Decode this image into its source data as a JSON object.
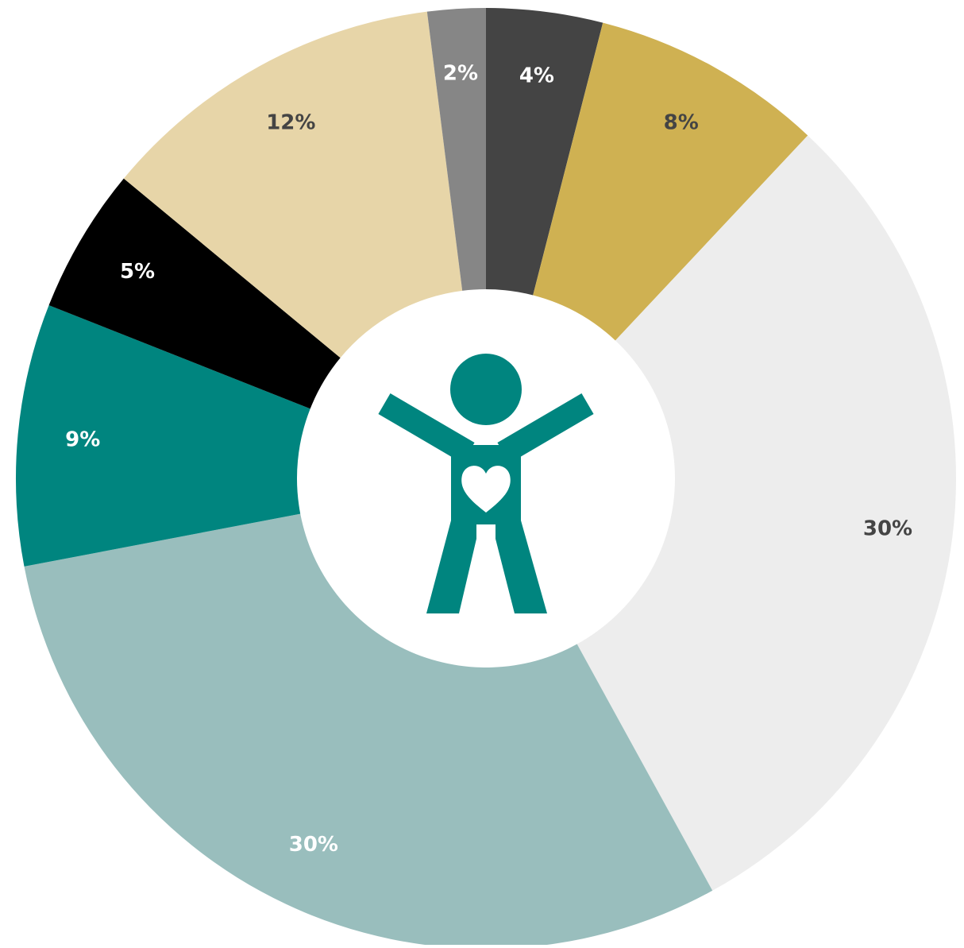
{
  "chart_data": {
    "type": "donut",
    "values": [
      4,
      8,
      30,
      30,
      9,
      5,
      12,
      2
    ],
    "value_labels": [
      "4%",
      "8%",
      "30%",
      "30%",
      "9%",
      "5%",
      "12%",
      "2%"
    ],
    "colors": [
      "#444444",
      "#cfb152",
      "#ededed",
      "#99bebd",
      "#00857f",
      "#000000",
      "#e7d5a8",
      "#868686"
    ],
    "label_colors": [
      "#ffffff",
      "#444444",
      "#444444",
      "#ffffff",
      "#ffffff",
      "#ffffff",
      "#444444",
      "#ffffff"
    ]
  }
}
